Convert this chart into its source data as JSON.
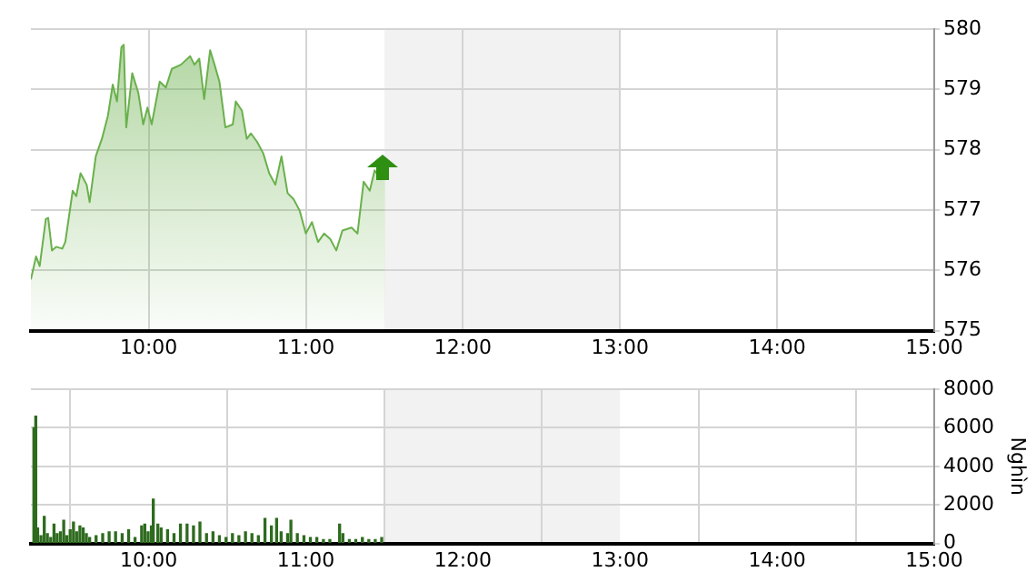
{
  "chart_data": [
    {
      "type": "area",
      "color": "#6ab04c",
      "xlim": [
        9.25,
        15
      ],
      "ylim": [
        575,
        580
      ],
      "grid": true,
      "xticks": [
        {
          "value": 10,
          "label": "10:00"
        },
        {
          "value": 11,
          "label": "11:00"
        },
        {
          "value": 12,
          "label": "12:00"
        },
        {
          "value": 13,
          "label": "13:00"
        },
        {
          "value": 14,
          "label": "14:00"
        },
        {
          "value": 15,
          "label": "15:00"
        }
      ],
      "yticks": [
        575,
        576,
        577,
        578,
        579,
        580
      ],
      "bands": [
        {
          "axis": "x",
          "from": 11.5,
          "to": 13,
          "color": "#f2f2f2"
        }
      ],
      "x": [
        9.25,
        9.283,
        9.306,
        9.345,
        9.36,
        9.384,
        9.411,
        9.45,
        9.469,
        9.516,
        9.539,
        9.566,
        9.605,
        9.624,
        9.663,
        9.702,
        9.74,
        9.771,
        9.798,
        9.826,
        9.841,
        9.857,
        9.895,
        9.934,
        9.965,
        9.992,
        10.019,
        10.07,
        10.109,
        10.147,
        10.205,
        10.264,
        10.291,
        10.322,
        10.353,
        10.391,
        10.419,
        10.45,
        10.488,
        10.535,
        10.554,
        10.593,
        10.624,
        10.651,
        10.69,
        10.729,
        10.767,
        10.806,
        10.845,
        10.884,
        10.922,
        10.961,
        11,
        11.039,
        11.078,
        11.116,
        11.155,
        11.194,
        11.233,
        11.291,
        11.329,
        11.368,
        11.407,
        11.438,
        11.477,
        11.504
      ],
      "values": [
        575.85,
        576.23,
        576.07,
        576.85,
        576.87,
        576.33,
        576.39,
        576.36,
        576.47,
        577.32,
        577.23,
        577.61,
        577.42,
        577.13,
        577.89,
        578.18,
        578.56,
        579.08,
        578.8,
        579.7,
        579.74,
        578.37,
        579.27,
        578.94,
        578.42,
        578.7,
        578.42,
        579.13,
        579.03,
        579.34,
        579.41,
        579.55,
        579.41,
        579.51,
        578.84,
        579.65,
        579.41,
        579.13,
        578.37,
        578.42,
        578.8,
        578.65,
        578.18,
        578.27,
        578.13,
        577.94,
        577.61,
        577.42,
        577.89,
        577.28,
        577.18,
        576.99,
        576.61,
        576.8,
        576.47,
        576.61,
        576.52,
        576.33,
        576.66,
        576.71,
        576.61,
        577.47,
        577.32,
        577.66,
        577.51,
        577.66
      ]
    },
    {
      "type": "bar",
      "color": "#2e6b1f",
      "ylabel": "Nghìn",
      "xlim": [
        9.25,
        15
      ],
      "ylim": [
        0,
        8000
      ],
      "grid": true,
      "xticks": [
        {
          "value": 10,
          "label": "10:00"
        },
        {
          "value": 11,
          "label": "11:00"
        },
        {
          "value": 12,
          "label": "12:00"
        },
        {
          "value": 13,
          "label": "13:00"
        },
        {
          "value": 14,
          "label": "14:00"
        },
        {
          "value": 15,
          "label": "15:00"
        }
      ],
      "yticks": [
        0,
        2000,
        4000,
        6000,
        8000
      ],
      "bands": [
        {
          "axis": "x",
          "from": 11.5,
          "to": 13,
          "color": "#f2f2f2"
        }
      ],
      "x": [
        9.269,
        9.281,
        9.293,
        9.314,
        9.335,
        9.355,
        9.376,
        9.397,
        9.417,
        9.438,
        9.459,
        9.479,
        9.5,
        9.521,
        9.541,
        9.562,
        9.583,
        9.603,
        9.624,
        9.665,
        9.707,
        9.748,
        9.789,
        9.831,
        9.872,
        9.913,
        9.955,
        9.975,
        9.996,
        10.017,
        10.029,
        10.058,
        10.079,
        10.12,
        10.161,
        10.202,
        10.244,
        10.285,
        10.326,
        10.368,
        10.409,
        10.45,
        10.492,
        10.533,
        10.574,
        10.616,
        10.657,
        10.698,
        10.74,
        10.781,
        10.814,
        10.843,
        10.884,
        10.905,
        10.946,
        10.988,
        11.029,
        11.07,
        11.112,
        11.153,
        11.215,
        11.236,
        11.277,
        11.318,
        11.36,
        11.401,
        11.442,
        11.483
      ],
      "values": [
        6000,
        6600,
        800,
        400,
        1400,
        500,
        300,
        1000,
        500,
        600,
        1200,
        400,
        700,
        1100,
        600,
        900,
        800,
        500,
        300,
        400,
        500,
        600,
        600,
        500,
        700,
        300,
        900,
        1000,
        600,
        900,
        2300,
        1000,
        800,
        700,
        500,
        1000,
        1000,
        900,
        1100,
        500,
        600,
        400,
        300,
        500,
        400,
        600,
        500,
        400,
        1300,
        900,
        1300,
        600,
        500,
        1200,
        500,
        400,
        300,
        300,
        200,
        200,
        1000,
        500,
        200,
        200,
        300,
        200,
        200,
        300
      ]
    }
  ]
}
